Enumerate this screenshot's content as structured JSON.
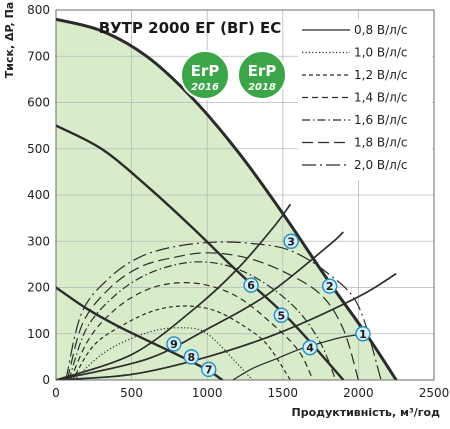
{
  "chart_data": {
    "type": "line",
    "title": "ВУТР 2000 ЕГ (ВГ) ЕС",
    "xlabel": "Продуктивність, м³/год",
    "ylabel": "Тиск, ΔP, Па",
    "xlim": [
      0,
      2500
    ],
    "ylim": [
      0,
      800
    ],
    "x_ticks": [
      "0",
      "500",
      "1000",
      "1500",
      "2000",
      "2500"
    ],
    "y_ticks": [
      "0",
      "100",
      "200",
      "300",
      "400",
      "500",
      "600",
      "700",
      "800"
    ],
    "grid": true,
    "legend_position": "top-right",
    "colors": {
      "fill": "#d9ecc9",
      "line": "#2b2b2b",
      "grid": "#b9b9b9",
      "marker_fill": "#d6eef9",
      "marker_stroke": "#1f8fc7",
      "erp_green": "#3aa648"
    },
    "badges": [
      {
        "top": "ErP",
        "bottom": "2016"
      },
      {
        "top": "ErP",
        "bottom": "2018"
      }
    ],
    "fan_curves": [
      {
        "name": "max",
        "points": [
          [
            0,
            780
          ],
          [
            300,
            755
          ],
          [
            600,
            700
          ],
          [
            900,
            610
          ],
          [
            1200,
            495
          ],
          [
            1500,
            360
          ],
          [
            1800,
            215
          ],
          [
            2050,
            100
          ],
          [
            2250,
            0
          ]
        ]
      },
      {
        "name": "mid",
        "points": [
          [
            0,
            550
          ],
          [
            300,
            500
          ],
          [
            600,
            420
          ],
          [
            900,
            330
          ],
          [
            1200,
            235
          ],
          [
            1500,
            145
          ],
          [
            1700,
            75
          ],
          [
            1900,
            0
          ]
        ]
      },
      {
        "name": "min",
        "points": [
          [
            0,
            200
          ],
          [
            200,
            155
          ],
          [
            400,
            118
          ],
          [
            600,
            86
          ],
          [
            800,
            55
          ],
          [
            1000,
            22
          ],
          [
            1100,
            0
          ]
        ]
      }
    ],
    "series": [
      {
        "name": "0,8 В/л/с",
        "dash": "solid",
        "points": [
          [
            1170,
            0
          ],
          [
            1300,
            25
          ],
          [
            1450,
            45
          ],
          [
            1600,
            65
          ],
          [
            1750,
            80
          ],
          [
            1900,
            93
          ],
          [
            2050,
            100
          ]
        ]
      },
      {
        "name": "1,0 В/л/с",
        "dash": "dotted",
        "points": [
          [
            120,
            0
          ],
          [
            300,
            55
          ],
          [
            500,
            90
          ],
          [
            700,
            110
          ],
          [
            900,
            112
          ],
          [
            1000,
            100
          ],
          [
            1100,
            70
          ],
          [
            1200,
            35
          ],
          [
            1300,
            0
          ]
        ]
      },
      {
        "name": "1,2 В/л/с",
        "dash": "short",
        "points": [
          [
            110,
            0
          ],
          [
            250,
            75
          ],
          [
            450,
            120
          ],
          [
            650,
            150
          ],
          [
            850,
            160
          ],
          [
            1050,
            150
          ],
          [
            1250,
            115
          ],
          [
            1400,
            75
          ],
          [
            1550,
            0
          ]
        ]
      },
      {
        "name": "1,4 В/л/с",
        "dash": "medium",
        "points": [
          [
            95,
            0
          ],
          [
            220,
            90
          ],
          [
            400,
            155
          ],
          [
            600,
            195
          ],
          [
            800,
            210
          ],
          [
            1000,
            205
          ],
          [
            1200,
            180
          ],
          [
            1400,
            130
          ],
          [
            1600,
            65
          ],
          [
            1700,
            0
          ]
        ]
      },
      {
        "name": "1,6 В/л/с",
        "dash": "dashdot",
        "points": [
          [
            85,
            0
          ],
          [
            200,
            110
          ],
          [
            380,
            180
          ],
          [
            580,
            225
          ],
          [
            800,
            250
          ],
          [
            1000,
            255
          ],
          [
            1200,
            240
          ],
          [
            1400,
            205
          ],
          [
            1600,
            150
          ],
          [
            1750,
            80
          ],
          [
            1850,
            0
          ]
        ]
      },
      {
        "name": "1,8 В/л/с",
        "dash": "long",
        "points": [
          [
            75,
            0
          ],
          [
            180,
            125
          ],
          [
            360,
            200
          ],
          [
            560,
            245
          ],
          [
            780,
            265
          ],
          [
            1000,
            275
          ],
          [
            1250,
            265
          ],
          [
            1500,
            235
          ],
          [
            1750,
            185
          ],
          [
            1900,
            110
          ],
          [
            2000,
            0
          ]
        ]
      },
      {
        "name": "2,0 В/л/с",
        "dash": "longdot",
        "points": [
          [
            65,
            0
          ],
          [
            170,
            145
          ],
          [
            350,
            220
          ],
          [
            550,
            265
          ],
          [
            780,
            288
          ],
          [
            1050,
            298
          ],
          [
            1300,
            295
          ],
          [
            1550,
            280
          ],
          [
            1800,
            230
          ],
          [
            2000,
            160
          ],
          [
            2150,
            0
          ]
        ]
      }
    ],
    "system_lines": [
      {
        "name": "1",
        "points": [
          [
            0,
            0
          ],
          [
            500,
            12
          ],
          [
            1000,
            50
          ],
          [
            1500,
            105
          ],
          [
            2000,
            180
          ],
          [
            2250,
            230
          ]
        ]
      },
      {
        "name": "2",
        "points": [
          [
            0,
            0
          ],
          [
            600,
            45
          ],
          [
            1000,
            110
          ],
          [
            1400,
            185
          ],
          [
            1800,
            290
          ],
          [
            1900,
            320
          ]
        ]
      },
      {
        "name": "3",
        "points": [
          [
            0,
            0
          ],
          [
            500,
            55
          ],
          [
            900,
            150
          ],
          [
            1200,
            240
          ],
          [
            1450,
            335
          ],
          [
            1550,
            380
          ]
        ]
      }
    ],
    "markers": [
      {
        "label": "1",
        "x": 2030,
        "y": 100
      },
      {
        "label": "2",
        "x": 1810,
        "y": 203
      },
      {
        "label": "3",
        "x": 1555,
        "y": 300
      },
      {
        "label": "4",
        "x": 1680,
        "y": 70
      },
      {
        "label": "5",
        "x": 1490,
        "y": 140
      },
      {
        "label": "6",
        "x": 1290,
        "y": 205
      },
      {
        "label": "7",
        "x": 1010,
        "y": 23
      },
      {
        "label": "8",
        "x": 895,
        "y": 50
      },
      {
        "label": "9",
        "x": 780,
        "y": 78
      }
    ]
  }
}
